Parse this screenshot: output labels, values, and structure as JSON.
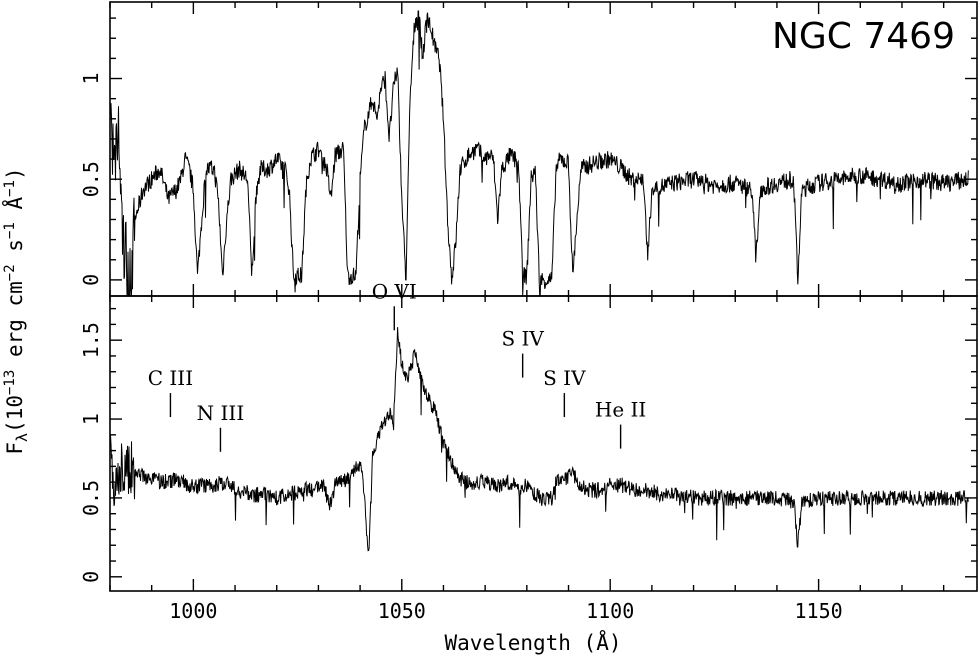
{
  "chart_data": {
    "type": "line",
    "title": "NGC 7469",
    "xlabel": "Wavelength (Å)",
    "ylabel": "Fλ(10⁻¹³ erg cm⁻² s⁻¹ Å⁻¹)",
    "ylabel_parts": {
      "main": "F",
      "sub": "λ",
      "rest": "(10",
      "exp": "−13",
      "unit1": " erg cm",
      "exp2": "−2",
      "unit2": " s",
      "exp3": "−1",
      "unit3": " Å",
      "exp4": "−1",
      "close": ")"
    },
    "xlim": [
      980,
      1188
    ],
    "xticks": [
      1000,
      1050,
      1100,
      1150
    ],
    "xtick_labels": [
      "1000",
      "1050",
      "1100",
      "1150"
    ],
    "grid": false,
    "panels": [
      {
        "name": "top",
        "ylim": [
          -0.08,
          1.38
        ],
        "yticks": [
          0,
          0.5,
          1
        ],
        "ytick_labels": [
          "0",
          "0.5",
          "1"
        ],
        "control_points": [
          [
            980,
            0.9
          ],
          [
            981,
            0.5
          ],
          [
            982,
            0.75
          ],
          [
            983,
            0.2
          ],
          [
            984,
            0.1
          ],
          [
            985,
            -0.05
          ],
          [
            986,
            0.3
          ],
          [
            988,
            0.45
          ],
          [
            990,
            0.5
          ],
          [
            992,
            0.55
          ],
          [
            994,
            0.4
          ],
          [
            996,
            0.45
          ],
          [
            997,
            0.5
          ],
          [
            998,
            0.6
          ],
          [
            999,
            0.55
          ],
          [
            1000,
            0.45
          ],
          [
            1001,
            0.02
          ],
          [
            1002,
            0.3
          ],
          [
            1003,
            0.55
          ],
          [
            1005,
            0.55
          ],
          [
            1006,
            0.4
          ],
          [
            1007,
            0.02
          ],
          [
            1008,
            0.3
          ],
          [
            1009,
            0.5
          ],
          [
            1011,
            0.55
          ],
          [
            1013,
            0.5
          ],
          [
            1014,
            0.02
          ],
          [
            1015,
            0.4
          ],
          [
            1016,
            0.55
          ],
          [
            1018,
            0.55
          ],
          [
            1020,
            0.6
          ],
          [
            1022,
            0.55
          ],
          [
            1023,
            0.45
          ],
          [
            1024,
            0.02
          ],
          [
            1026,
            0.02
          ],
          [
            1027,
            0.45
          ],
          [
            1028,
            0.6
          ],
          [
            1030,
            0.65
          ],
          [
            1032,
            0.55
          ],
          [
            1033,
            0.4
          ],
          [
            1034,
            0.62
          ],
          [
            1036,
            0.65
          ],
          [
            1037,
            0.02
          ],
          [
            1039,
            0.02
          ],
          [
            1040,
            0.5
          ],
          [
            1041,
            0.75
          ],
          [
            1043,
            0.9
          ],
          [
            1044,
            0.8
          ],
          [
            1045,
            0.95
          ],
          [
            1046,
            1.0
          ],
          [
            1047,
            0.7
          ],
          [
            1048,
            0.95
          ],
          [
            1049,
            1.05
          ],
          [
            1050,
            0.4
          ],
          [
            1051,
            0.0
          ],
          [
            1052,
            0.9
          ],
          [
            1053,
            1.25
          ],
          [
            1054,
            1.35
          ],
          [
            1055,
            1.1
          ],
          [
            1056,
            1.3
          ],
          [
            1057,
            1.25
          ],
          [
            1058,
            1.15
          ],
          [
            1059,
            1.1
          ],
          [
            1060,
            0.8
          ],
          [
            1061,
            0.3
          ],
          [
            1062,
            0.0
          ],
          [
            1063,
            0.2
          ],
          [
            1064,
            0.55
          ],
          [
            1066,
            0.62
          ],
          [
            1068,
            0.65
          ],
          [
            1070,
            0.6
          ],
          [
            1071,
            0.62
          ],
          [
            1072,
            0.6
          ],
          [
            1073,
            0.3
          ],
          [
            1074,
            0.55
          ],
          [
            1076,
            0.62
          ],
          [
            1078,
            0.58
          ],
          [
            1079,
            0.02
          ],
          [
            1080,
            0.02
          ],
          [
            1081,
            0.5
          ],
          [
            1082,
            0.55
          ],
          [
            1083,
            0.0
          ],
          [
            1086,
            0.0
          ],
          [
            1087,
            0.55
          ],
          [
            1088,
            0.6
          ],
          [
            1090,
            0.58
          ],
          [
            1091,
            0.02
          ],
          [
            1092,
            0.3
          ],
          [
            1093,
            0.55
          ],
          [
            1096,
            0.58
          ],
          [
            1100,
            0.6
          ],
          [
            1103,
            0.55
          ],
          [
            1105,
            0.5
          ],
          [
            1108,
            0.5
          ],
          [
            1109,
            0.1
          ],
          [
            1110,
            0.45
          ],
          [
            1115,
            0.48
          ],
          [
            1120,
            0.5
          ],
          [
            1125,
            0.47
          ],
          [
            1130,
            0.48
          ],
          [
            1134,
            0.45
          ],
          [
            1135,
            0.1
          ],
          [
            1136,
            0.45
          ],
          [
            1140,
            0.48
          ],
          [
            1144,
            0.5
          ],
          [
            1145,
            0.0
          ],
          [
            1146,
            0.45
          ],
          [
            1150,
            0.48
          ],
          [
            1155,
            0.5
          ],
          [
            1160,
            0.52
          ],
          [
            1165,
            0.5
          ],
          [
            1170,
            0.48
          ],
          [
            1175,
            0.5
          ],
          [
            1180,
            0.48
          ],
          [
            1186,
            0.5
          ]
        ]
      },
      {
        "name": "bottom",
        "ylim": [
          -0.09,
          1.78
        ],
        "yticks": [
          0,
          0.5,
          1,
          1.5
        ],
        "ytick_labels": [
          "0",
          "0.5",
          "1",
          "1.5"
        ],
        "control_points": [
          [
            980,
            0.75
          ],
          [
            981,
            0.6
          ],
          [
            982,
            0.55
          ],
          [
            983,
            0.65
          ],
          [
            985,
            0.7
          ],
          [
            987,
            0.65
          ],
          [
            990,
            0.62
          ],
          [
            993,
            0.6
          ],
          [
            996,
            0.62
          ],
          [
            999,
            0.58
          ],
          [
            1002,
            0.58
          ],
          [
            1005,
            0.58
          ],
          [
            1008,
            0.6
          ],
          [
            1011,
            0.55
          ],
          [
            1014,
            0.52
          ],
          [
            1017,
            0.52
          ],
          [
            1020,
            0.5
          ],
          [
            1023,
            0.52
          ],
          [
            1026,
            0.55
          ],
          [
            1029,
            0.55
          ],
          [
            1031,
            0.58
          ],
          [
            1033,
            0.45
          ],
          [
            1034,
            0.6
          ],
          [
            1036,
            0.6
          ],
          [
            1038,
            0.65
          ],
          [
            1040,
            0.72
          ],
          [
            1041,
            0.55
          ],
          [
            1042,
            0.1
          ],
          [
            1043,
            0.75
          ],
          [
            1044,
            0.85
          ],
          [
            1045,
            0.95
          ],
          [
            1046,
            1.0
          ],
          [
            1047,
            1.05
          ],
          [
            1048,
            0.95
          ],
          [
            1049,
            1.55
          ],
          [
            1050,
            1.35
          ],
          [
            1051,
            1.25
          ],
          [
            1052,
            1.3
          ],
          [
            1053,
            1.4
          ],
          [
            1054,
            1.35
          ],
          [
            1055,
            1.2
          ],
          [
            1056,
            1.15
          ],
          [
            1057,
            1.1
          ],
          [
            1058,
            1.05
          ],
          [
            1059,
            0.95
          ],
          [
            1060,
            0.85
          ],
          [
            1061,
            0.8
          ],
          [
            1062,
            0.72
          ],
          [
            1064,
            0.62
          ],
          [
            1066,
            0.6
          ],
          [
            1068,
            0.6
          ],
          [
            1070,
            0.6
          ],
          [
            1072,
            0.58
          ],
          [
            1074,
            0.58
          ],
          [
            1076,
            0.6
          ],
          [
            1078,
            0.55
          ],
          [
            1080,
            0.58
          ],
          [
            1082,
            0.52
          ],
          [
            1083,
            0.5
          ],
          [
            1086,
            0.5
          ],
          [
            1087,
            0.6
          ],
          [
            1089,
            0.62
          ],
          [
            1091,
            0.65
          ],
          [
            1093,
            0.58
          ],
          [
            1095,
            0.55
          ],
          [
            1098,
            0.55
          ],
          [
            1100,
            0.58
          ],
          [
            1103,
            0.58
          ],
          [
            1106,
            0.55
          ],
          [
            1109,
            0.55
          ],
          [
            1112,
            0.52
          ],
          [
            1116,
            0.52
          ],
          [
            1120,
            0.5
          ],
          [
            1125,
            0.5
          ],
          [
            1130,
            0.5
          ],
          [
            1135,
            0.5
          ],
          [
            1140,
            0.5
          ],
          [
            1144,
            0.48
          ],
          [
            1145,
            0.2
          ],
          [
            1146,
            0.48
          ],
          [
            1150,
            0.5
          ],
          [
            1155,
            0.5
          ],
          [
            1160,
            0.5
          ],
          [
            1165,
            0.5
          ],
          [
            1170,
            0.5
          ],
          [
            1175,
            0.5
          ],
          [
            1180,
            0.5
          ],
          [
            1186,
            0.5
          ]
        ],
        "annotations": [
          {
            "label": "C III",
            "x": 994.5,
            "y_mark": 1.0
          },
          {
            "label": "N III",
            "x": 1006.5,
            "y_mark": 0.78
          },
          {
            "label": "O VI",
            "x": 1048.2,
            "y_mark": 1.55
          },
          {
            "label": "S IV",
            "x": 1079.0,
            "y_mark": 1.25
          },
          {
            "label": "S IV",
            "x": 1089.0,
            "y_mark": 1.0
          },
          {
            "label": "He II",
            "x": 1102.5,
            "y_mark": 0.8
          }
        ]
      }
    ]
  }
}
